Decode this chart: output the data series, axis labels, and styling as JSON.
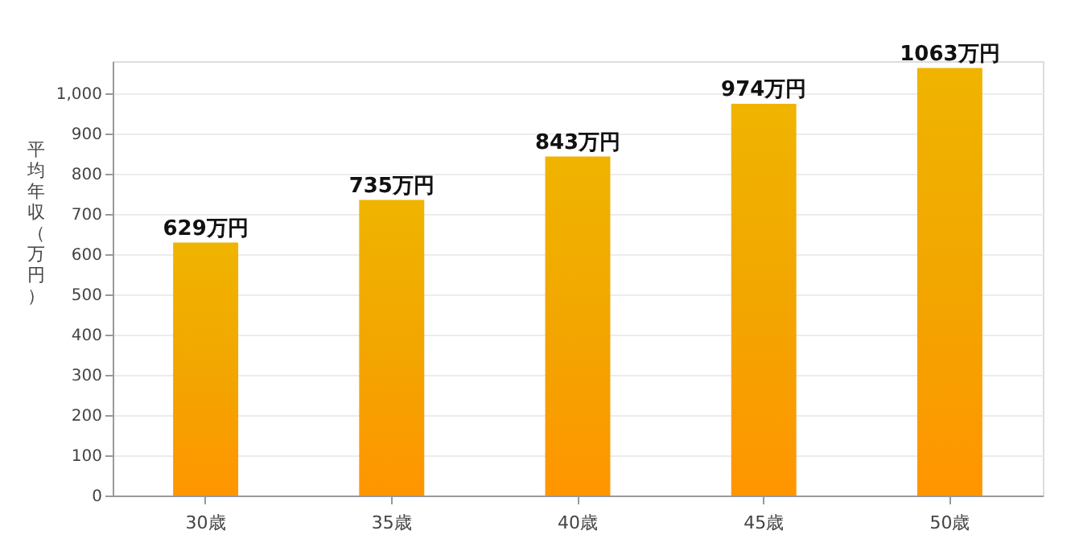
{
  "chart_data": {
    "type": "bar",
    "ylabel": "平均年収（万円）",
    "categories": [
      "30歳",
      "35歳",
      "40歳",
      "45歳",
      "50歳"
    ],
    "values": [
      629,
      735,
      843,
      974,
      1063
    ],
    "value_labels": [
      "629万円",
      "735万円",
      "843万円",
      "974万円",
      "1063万円"
    ],
    "color": "#f2a600",
    "ylim": [
      0,
      1080
    ],
    "yticks": [
      0,
      100,
      200,
      300,
      400,
      500,
      600,
      700,
      800,
      900,
      {
        "value": 1000,
        "label": "1,000"
      }
    ],
    "grid": "y"
  }
}
